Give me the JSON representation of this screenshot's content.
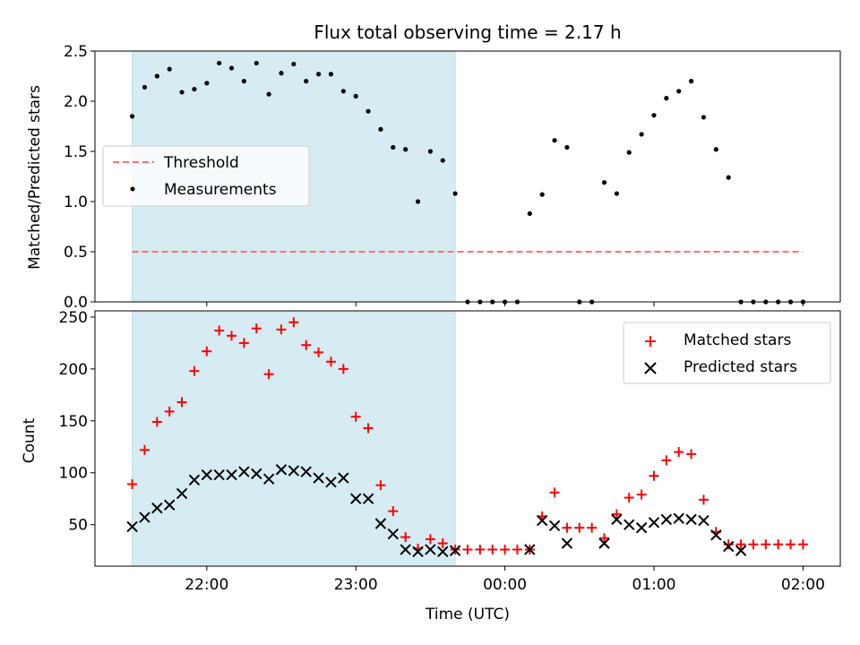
{
  "chart_data": [
    {
      "type": "scatter",
      "title": "Flux total observing time = 2.17 h",
      "xlabel": "",
      "ylabel": "Matched/Predicted stars",
      "xlim": [
        "21:15",
        "02:15"
      ],
      "ylim": [
        0,
        2.5
      ],
      "yticks": [
        0.0,
        0.5,
        1.0,
        1.5,
        2.0,
        2.5
      ],
      "ytick_labels": [
        "0.0",
        "0.5",
        "1.0",
        "1.5",
        "2.0",
        "2.5"
      ],
      "shaded_span": [
        "21:30",
        "23:40"
      ],
      "shaded_color": "#add8e6",
      "legend_location": "center-left",
      "threshold": {
        "name": "Threshold",
        "value": 0.5,
        "x_range": [
          "21:30",
          "02:00"
        ],
        "color": "#ff7070"
      },
      "series": [
        {
          "name": "Measurements",
          "color": "#000000",
          "x": [
            "21:30",
            "21:35",
            "21:40",
            "21:45",
            "21:50",
            "21:55",
            "22:00",
            "22:05",
            "22:10",
            "22:15",
            "22:20",
            "22:25",
            "22:30",
            "22:35",
            "22:40",
            "22:45",
            "22:50",
            "22:55",
            "23:00",
            "23:05",
            "23:10",
            "23:15",
            "23:20",
            "23:25",
            "23:30",
            "23:35",
            "23:40",
            "23:45",
            "23:50",
            "23:55",
            "00:00",
            "00:05",
            "00:10",
            "00:15",
            "00:20",
            "00:25",
            "00:30",
            "00:35",
            "00:40",
            "00:45",
            "00:50",
            "00:55",
            "01:00",
            "01:05",
            "01:10",
            "01:15",
            "01:20",
            "01:25",
            "01:30",
            "01:35",
            "01:40",
            "01:45",
            "01:50",
            "01:55",
            "02:00"
          ],
          "y": [
            1.85,
            2.14,
            2.25,
            2.32,
            2.09,
            2.12,
            2.18,
            2.38,
            2.33,
            2.2,
            2.38,
            2.07,
            2.28,
            2.37,
            2.2,
            2.27,
            2.27,
            2.1,
            2.05,
            1.9,
            1.72,
            1.54,
            1.52,
            1.0,
            1.5,
            1.41,
            1.08,
            0.0,
            0.0,
            0.0,
            0.0,
            0.0,
            0.88,
            1.07,
            1.61,
            1.54,
            0.0,
            0.0,
            1.19,
            1.08,
            1.49,
            1.67,
            1.86,
            2.03,
            2.1,
            2.2,
            1.84,
            1.52,
            1.24,
            0.0,
            0.0,
            0.0,
            0.0,
            0.0,
            0.0
          ]
        }
      ]
    },
    {
      "type": "scatter",
      "title": "",
      "xlabel": "Time (UTC)",
      "ylabel": "Count",
      "xlim": [
        "21:15",
        "02:15"
      ],
      "ylim": [
        10,
        256
      ],
      "yticks": [
        50,
        100,
        150,
        200,
        250
      ],
      "ytick_labels": [
        "50",
        "100",
        "150",
        "200",
        "250"
      ],
      "xticks": [
        "22:00",
        "23:00",
        "00:00",
        "01:00",
        "02:00"
      ],
      "xtick_labels": [
        "22:00",
        "23:00",
        "00:00",
        "01:00",
        "02:00"
      ],
      "shaded_span": [
        "21:30",
        "23:40"
      ],
      "shaded_color": "#add8e6",
      "legend_location": "top-right",
      "series": [
        {
          "name": "Matched stars",
          "color": "#ff0000",
          "marker": "plus",
          "x": [
            "21:30",
            "21:35",
            "21:40",
            "21:45",
            "21:50",
            "21:55",
            "22:00",
            "22:05",
            "22:10",
            "22:15",
            "22:20",
            "22:25",
            "22:30",
            "22:35",
            "22:40",
            "22:45",
            "22:50",
            "22:55",
            "23:00",
            "23:05",
            "23:10",
            "23:15",
            "23:20",
            "23:25",
            "23:30",
            "23:35",
            "23:40",
            "23:45",
            "23:50",
            "23:55",
            "00:00",
            "00:05",
            "00:10",
            "00:15",
            "00:20",
            "00:25",
            "00:30",
            "00:35",
            "00:40",
            "00:45",
            "00:50",
            "00:55",
            "01:00",
            "01:05",
            "01:10",
            "01:15",
            "01:20",
            "01:25",
            "01:30",
            "01:35",
            "01:40",
            "01:45",
            "01:50",
            "01:55",
            "02:00"
          ],
          "y": [
            89,
            122,
            149,
            159,
            168,
            198,
            217,
            237,
            232,
            225,
            239,
            195,
            238,
            245,
            223,
            216,
            207,
            200,
            154,
            143,
            88,
            63,
            38,
            27,
            36,
            32,
            26,
            26,
            26,
            26,
            26,
            26,
            26,
            58,
            81,
            47,
            47,
            47,
            37,
            60,
            76,
            79,
            97,
            112,
            120,
            118,
            74,
            43,
            31,
            31,
            31,
            31,
            31,
            31,
            31
          ]
        },
        {
          "name": "Predicted stars",
          "color": "#000000",
          "marker": "x",
          "x": [
            "21:30",
            "21:35",
            "21:40",
            "21:45",
            "21:50",
            "21:55",
            "22:00",
            "22:05",
            "22:10",
            "22:15",
            "22:20",
            "22:25",
            "22:30",
            "22:35",
            "22:40",
            "22:45",
            "22:50",
            "22:55",
            "23:00",
            "23:05",
            "23:10",
            "23:15",
            "23:20",
            "23:25",
            "23:30",
            "23:35",
            "23:40",
            "00:10",
            "00:15",
            "00:20",
            "00:25",
            "00:40",
            "00:45",
            "00:50",
            "00:55",
            "01:00",
            "01:05",
            "01:10",
            "01:15",
            "01:20",
            "01:25",
            "01:30",
            "01:35"
          ],
          "y": [
            48,
            57,
            66,
            69,
            80,
            93,
            98,
            98,
            98,
            101,
            99,
            94,
            103,
            102,
            101,
            95,
            91,
            95,
            75,
            75,
            51,
            41,
            26,
            24,
            26,
            24,
            25,
            26,
            54,
            49,
            32,
            32,
            55,
            50,
            47,
            52,
            55,
            56,
            55,
            54,
            40,
            29,
            25
          ]
        }
      ]
    }
  ]
}
